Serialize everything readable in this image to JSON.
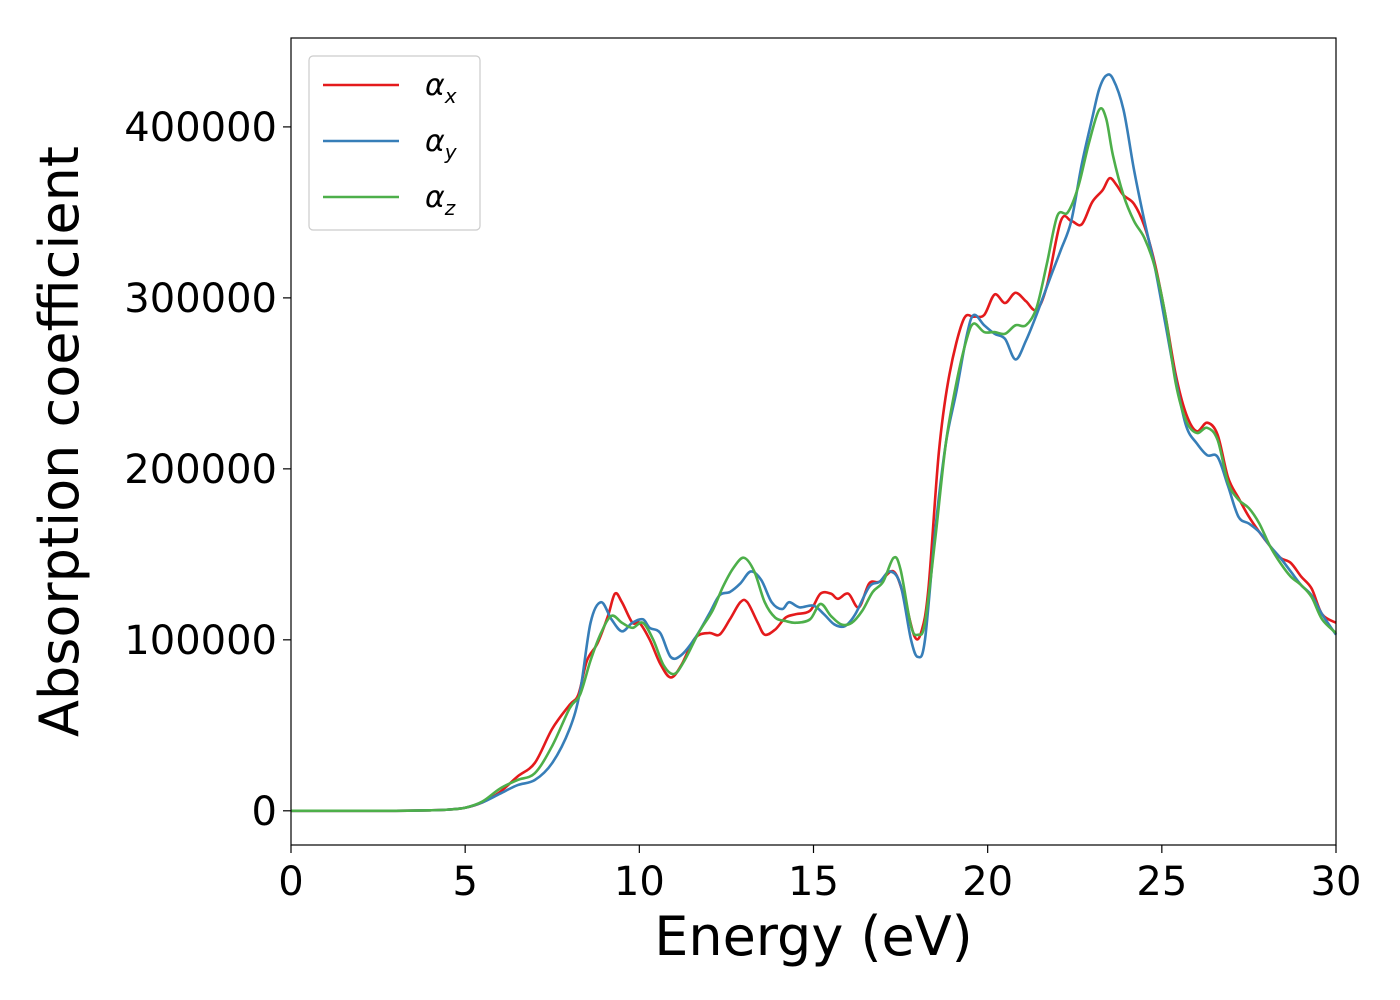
{
  "chart_data": {
    "type": "line",
    "title": "",
    "xlabel": "Energy (eV)",
    "ylabel": "Absorption coefficient",
    "xlim": [
      0,
      30
    ],
    "ylim": [
      -20000,
      452000
    ],
    "xticks": [
      0,
      5,
      10,
      15,
      20,
      25,
      30
    ],
    "yticks": [
      0,
      100000,
      200000,
      300000,
      400000
    ],
    "xtick_labels": [
      "0",
      "5",
      "10",
      "15",
      "20",
      "25",
      "30"
    ],
    "ytick_labels": [
      "0",
      "100000",
      "200000",
      "300000",
      "400000"
    ],
    "grid": false,
    "legend": {
      "position": "top-left",
      "entries": [
        {
          "symbol": "α",
          "sub": "x"
        },
        {
          "symbol": "α",
          "sub": "y"
        },
        {
          "symbol": "α",
          "sub": "z"
        }
      ]
    },
    "series": [
      {
        "color": "#e41a1c",
        "points": [
          [
            0,
            0
          ],
          [
            1,
            0
          ],
          [
            2,
            0
          ],
          [
            3,
            0
          ],
          [
            4,
            300
          ],
          [
            4.5,
            700
          ],
          [
            5,
            1800
          ],
          [
            5.5,
            5000
          ],
          [
            6,
            11000
          ],
          [
            6.5,
            20000
          ],
          [
            7,
            28000
          ],
          [
            7.5,
            48000
          ],
          [
            8,
            62000
          ],
          [
            8.25,
            68000
          ],
          [
            8.5,
            88000
          ],
          [
            8.8,
            98000
          ],
          [
            9.1,
            114000
          ],
          [
            9.3,
            127000
          ],
          [
            9.5,
            122000
          ],
          [
            9.8,
            110000
          ],
          [
            10,
            110000
          ],
          [
            10.3,
            100000
          ],
          [
            10.6,
            86000
          ],
          [
            10.9,
            78000
          ],
          [
            11.2,
            85000
          ],
          [
            11.6,
            101000
          ],
          [
            12,
            104000
          ],
          [
            12.3,
            103000
          ],
          [
            12.6,
            112000
          ],
          [
            12.9,
            122000
          ],
          [
            13.1,
            122000
          ],
          [
            13.4,
            110000
          ],
          [
            13.6,
            103000
          ],
          [
            13.9,
            106000
          ],
          [
            14.2,
            113000
          ],
          [
            14.5,
            115000
          ],
          [
            14.9,
            117000
          ],
          [
            15.2,
            127000
          ],
          [
            15.5,
            127000
          ],
          [
            15.7,
            124000
          ],
          [
            16,
            127000
          ],
          [
            16.3,
            119000
          ],
          [
            16.6,
            133000
          ],
          [
            16.9,
            134000
          ],
          [
            17.3,
            140000
          ],
          [
            17.6,
            125000
          ],
          [
            17.9,
            102000
          ],
          [
            18.1,
            105000
          ],
          [
            18.3,
            130000
          ],
          [
            18.6,
            210000
          ],
          [
            18.9,
            255000
          ],
          [
            19.3,
            287000
          ],
          [
            19.6,
            289000
          ],
          [
            19.9,
            290000
          ],
          [
            20.2,
            302000
          ],
          [
            20.5,
            297000
          ],
          [
            20.8,
            303000
          ],
          [
            21.1,
            298000
          ],
          [
            21.4,
            293000
          ],
          [
            21.7,
            307000
          ],
          [
            22.1,
            345000
          ],
          [
            22.4,
            345000
          ],
          [
            22.7,
            343000
          ],
          [
            23,
            356000
          ],
          [
            23.3,
            363000
          ],
          [
            23.5,
            370000
          ],
          [
            23.7,
            366000
          ],
          [
            23.9,
            360000
          ],
          [
            24.2,
            355000
          ],
          [
            24.5,
            342000
          ],
          [
            24.8,
            320000
          ],
          [
            25.1,
            290000
          ],
          [
            25.4,
            255000
          ],
          [
            25.7,
            232000
          ],
          [
            26,
            222000
          ],
          [
            26.3,
            227000
          ],
          [
            26.6,
            220000
          ],
          [
            26.9,
            195000
          ],
          [
            27.2,
            183000
          ],
          [
            27.5,
            172000
          ],
          [
            27.8,
            163000
          ],
          [
            28.1,
            155000
          ],
          [
            28.4,
            148000
          ],
          [
            28.7,
            145000
          ],
          [
            29,
            137000
          ],
          [
            29.3,
            130000
          ],
          [
            29.6,
            115000
          ],
          [
            30,
            110000
          ]
        ]
      },
      {
        "color": "#377eb8",
        "points": [
          [
            0,
            0
          ],
          [
            1,
            0
          ],
          [
            2,
            0
          ],
          [
            3,
            0
          ],
          [
            4,
            300
          ],
          [
            4.5,
            700
          ],
          [
            5,
            1800
          ],
          [
            5.5,
            5000
          ],
          [
            6,
            10000
          ],
          [
            6.5,
            15000
          ],
          [
            7,
            18000
          ],
          [
            7.5,
            28000
          ],
          [
            8,
            48000
          ],
          [
            8.3,
            70000
          ],
          [
            8.6,
            110000
          ],
          [
            8.9,
            122000
          ],
          [
            9.2,
            112000
          ],
          [
            9.5,
            105000
          ],
          [
            9.8,
            110000
          ],
          [
            10.1,
            112000
          ],
          [
            10.3,
            107000
          ],
          [
            10.6,
            104000
          ],
          [
            10.9,
            90000
          ],
          [
            11.2,
            91000
          ],
          [
            11.6,
            101000
          ],
          [
            12,
            115000
          ],
          [
            12.3,
            126000
          ],
          [
            12.6,
            128000
          ],
          [
            12.9,
            133000
          ],
          [
            13.2,
            140000
          ],
          [
            13.5,
            135000
          ],
          [
            13.8,
            122000
          ],
          [
            14.1,
            118000
          ],
          [
            14.3,
            122000
          ],
          [
            14.6,
            119000
          ],
          [
            15,
            120000
          ],
          [
            15.3,
            115000
          ],
          [
            15.6,
            109000
          ],
          [
            15.9,
            108000
          ],
          [
            16.2,
            115000
          ],
          [
            16.6,
            131000
          ],
          [
            16.9,
            134000
          ],
          [
            17.2,
            140000
          ],
          [
            17.5,
            132000
          ],
          [
            17.8,
            100000
          ],
          [
            18,
            90000
          ],
          [
            18.2,
            100000
          ],
          [
            18.5,
            165000
          ],
          [
            18.8,
            215000
          ],
          [
            19.1,
            245000
          ],
          [
            19.4,
            278000
          ],
          [
            19.6,
            290000
          ],
          [
            19.9,
            284000
          ],
          [
            20.2,
            279000
          ],
          [
            20.5,
            276000
          ],
          [
            20.8,
            264000
          ],
          [
            21.1,
            275000
          ],
          [
            21.4,
            290000
          ],
          [
            21.8,
            312000
          ],
          [
            22.1,
            328000
          ],
          [
            22.4,
            345000
          ],
          [
            22.7,
            378000
          ],
          [
            23,
            405000
          ],
          [
            23.2,
            422000
          ],
          [
            23.4,
            430000
          ],
          [
            23.6,
            428000
          ],
          [
            23.9,
            410000
          ],
          [
            24.2,
            375000
          ],
          [
            24.5,
            345000
          ],
          [
            24.8,
            318000
          ],
          [
            25.1,
            285000
          ],
          [
            25.4,
            252000
          ],
          [
            25.7,
            225000
          ],
          [
            26,
            215000
          ],
          [
            26.3,
            208000
          ],
          [
            26.6,
            207000
          ],
          [
            26.9,
            190000
          ],
          [
            27.2,
            172000
          ],
          [
            27.5,
            168000
          ],
          [
            27.8,
            163000
          ],
          [
            28.1,
            155000
          ],
          [
            28.4,
            148000
          ],
          [
            28.7,
            140000
          ],
          [
            29,
            132000
          ],
          [
            29.3,
            126000
          ],
          [
            29.6,
            115000
          ],
          [
            30,
            103000
          ]
        ]
      },
      {
        "color": "#4daf4a",
        "points": [
          [
            0,
            0
          ],
          [
            1,
            0
          ],
          [
            2,
            0
          ],
          [
            3,
            0
          ],
          [
            4,
            300
          ],
          [
            4.5,
            700
          ],
          [
            5,
            1800
          ],
          [
            5.5,
            5500
          ],
          [
            6,
            13000
          ],
          [
            6.5,
            18000
          ],
          [
            7,
            22000
          ],
          [
            7.5,
            38000
          ],
          [
            8,
            60000
          ],
          [
            8.3,
            68000
          ],
          [
            8.6,
            88000
          ],
          [
            8.9,
            104000
          ],
          [
            9.2,
            114000
          ],
          [
            9.5,
            110000
          ],
          [
            9.8,
            107000
          ],
          [
            10.1,
            110000
          ],
          [
            10.4,
            100000
          ],
          [
            10.7,
            85000
          ],
          [
            11,
            80000
          ],
          [
            11.3,
            88000
          ],
          [
            11.7,
            104000
          ],
          [
            12.1,
            117000
          ],
          [
            12.4,
            131000
          ],
          [
            12.7,
            142000
          ],
          [
            13,
            148000
          ],
          [
            13.3,
            140000
          ],
          [
            13.6,
            122000
          ],
          [
            13.9,
            113000
          ],
          [
            14.2,
            111000
          ],
          [
            14.5,
            110000
          ],
          [
            14.9,
            112000
          ],
          [
            15.2,
            121000
          ],
          [
            15.5,
            114000
          ],
          [
            15.8,
            109000
          ],
          [
            16.1,
            110000
          ],
          [
            16.4,
            117000
          ],
          [
            16.7,
            128000
          ],
          [
            17,
            134000
          ],
          [
            17.3,
            148000
          ],
          [
            17.5,
            141000
          ],
          [
            17.8,
            108000
          ],
          [
            18,
            103000
          ],
          [
            18.2,
            110000
          ],
          [
            18.5,
            160000
          ],
          [
            18.8,
            215000
          ],
          [
            19.1,
            250000
          ],
          [
            19.4,
            276000
          ],
          [
            19.6,
            285000
          ],
          [
            19.9,
            280000
          ],
          [
            20.2,
            280000
          ],
          [
            20.5,
            279000
          ],
          [
            20.8,
            284000
          ],
          [
            21.1,
            284000
          ],
          [
            21.4,
            294000
          ],
          [
            21.7,
            320000
          ],
          [
            22,
            348000
          ],
          [
            22.3,
            350000
          ],
          [
            22.6,
            365000
          ],
          [
            22.9,
            390000
          ],
          [
            23.2,
            410000
          ],
          [
            23.4,
            405000
          ],
          [
            23.6,
            383000
          ],
          [
            23.9,
            360000
          ],
          [
            24.2,
            345000
          ],
          [
            24.5,
            335000
          ],
          [
            24.8,
            318000
          ],
          [
            25.1,
            290000
          ],
          [
            25.4,
            250000
          ],
          [
            25.7,
            228000
          ],
          [
            26,
            221000
          ],
          [
            26.3,
            224000
          ],
          [
            26.6,
            217000
          ],
          [
            26.9,
            192000
          ],
          [
            27.2,
            182000
          ],
          [
            27.5,
            177000
          ],
          [
            27.8,
            168000
          ],
          [
            28.1,
            155000
          ],
          [
            28.4,
            145000
          ],
          [
            28.7,
            137000
          ],
          [
            29,
            132000
          ],
          [
            29.3,
            125000
          ],
          [
            29.6,
            112000
          ],
          [
            30,
            104000
          ]
        ]
      }
    ]
  }
}
